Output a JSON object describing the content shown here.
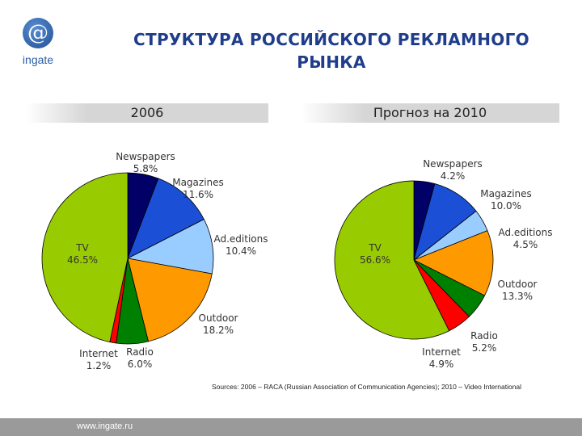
{
  "brand": {
    "logo_symbol": "@",
    "logo_text": "ingate"
  },
  "title_line1": "СТРУКТУРА РОССИЙСКОГО РЕКЛАМНОГО",
  "title_line2": "РЫНКА",
  "source": "Sources: 2006 – RACA (Russian Association of Communication Agencies); 2010 – Video International",
  "footer_url": "www.ingate.ru",
  "colors": {
    "Newspapers": "#000066",
    "Magazines": "#1a4fd6",
    "Ad.editions": "#99ccff",
    "Outdoor": "#ff9900",
    "Radio": "#008000",
    "Internet": "#ff0000",
    "TV": "#99cc00"
  },
  "chart_data": [
    {
      "type": "pie",
      "title": "2006",
      "slices": [
        {
          "label": "Newspapers",
          "value": 5.8,
          "value_text": "5.8%"
        },
        {
          "label": "Magazines",
          "value": 11.6,
          "value_text": "11.6%"
        },
        {
          "label": "Ad.editions",
          "value": 10.4,
          "value_text": "10.4%"
        },
        {
          "label": "Outdoor",
          "value": 18.2,
          "value_text": "18.2%"
        },
        {
          "label": "Radio",
          "value": 6.0,
          "value_text": "6.0%"
        },
        {
          "label": "Internet",
          "value": 1.2,
          "value_text": "1.2%"
        },
        {
          "label": "TV",
          "value": 46.5,
          "value_text": "46.5%"
        }
      ]
    },
    {
      "type": "pie",
      "title": "Прогноз на 2010",
      "slices": [
        {
          "label": "Newspapers",
          "value": 4.2,
          "value_text": "4.2%"
        },
        {
          "label": "Magazines",
          "value": 10.0,
          "value_text": "10.0%"
        },
        {
          "label": "Ad.editions",
          "value": 4.5,
          "value_text": "4.5%"
        },
        {
          "label": "Outdoor",
          "value": 13.3,
          "value_text": "13.3%"
        },
        {
          "label": "Radio",
          "value": 5.2,
          "value_text": "5.2%"
        },
        {
          "label": "Internet",
          "value": 4.9,
          "value_text": "4.9%"
        },
        {
          "label": "TV",
          "value": 56.6,
          "value_text": "56.6%"
        }
      ]
    }
  ]
}
